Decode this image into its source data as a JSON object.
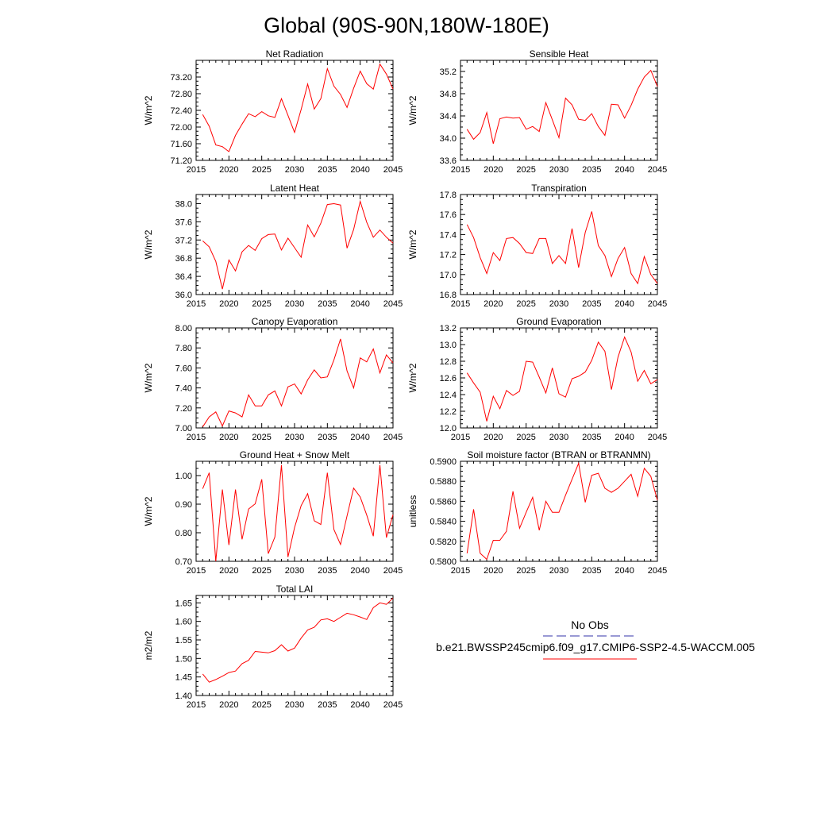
{
  "page_title": "Global (90S-90N,180W-180E)",
  "legend": {
    "obs_label": "No Obs",
    "obs_color": "#3333aa",
    "model_label": "b.e21.BWSSP245cmip6.f09_g17.CMIP6-SSP2-4.5-WACCM.005",
    "model_color": "#ff0000"
  },
  "chart_data": [
    {
      "type": "line",
      "title": "Net Radiation",
      "xlabel": "",
      "ylabel": "W/m^2",
      "xlim": [
        2015,
        2045
      ],
      "ylim": [
        71.2,
        73.6
      ],
      "yticks": [
        "71.20",
        "71.60",
        "72.00",
        "72.40",
        "72.80",
        "73.20"
      ],
      "xticks": [
        "2015",
        "2020",
        "2025",
        "2030",
        "2035",
        "2040",
        "2045"
      ],
      "x": [
        2016,
        2017,
        2018,
        2019,
        2020,
        2021,
        2022,
        2023,
        2024,
        2025,
        2026,
        2027,
        2028,
        2029,
        2030,
        2031,
        2032,
        2033,
        2034,
        2035,
        2036,
        2037,
        2038,
        2039,
        2040,
        2041,
        2042,
        2043,
        2044,
        2045
      ],
      "values": [
        72.3,
        72.02,
        71.57,
        71.53,
        71.41,
        71.8,
        72.07,
        72.32,
        72.25,
        72.37,
        72.27,
        72.23,
        72.68,
        72.28,
        71.87,
        72.42,
        73.03,
        72.43,
        72.68,
        73.4,
        72.98,
        72.78,
        72.47,
        72.93,
        73.34,
        73.04,
        72.91,
        73.51,
        73.27,
        72.91
      ],
      "series_color": "#ff0000"
    },
    {
      "type": "line",
      "title": "Sensible Heat",
      "xlabel": "",
      "ylabel": "W/m^2",
      "xlim": [
        2015,
        2045
      ],
      "ylim": [
        33.6,
        35.4
      ],
      "yticks": [
        "33.6",
        "34.0",
        "34.4",
        "34.8",
        "35.2"
      ],
      "xticks": [
        "2015",
        "2020",
        "2025",
        "2030",
        "2035",
        "2040",
        "2045"
      ],
      "x": [
        2016,
        2017,
        2018,
        2019,
        2020,
        2021,
        2022,
        2023,
        2024,
        2025,
        2026,
        2027,
        2028,
        2029,
        2030,
        2031,
        2032,
        2033,
        2034,
        2035,
        2036,
        2037,
        2038,
        2039,
        2040,
        2041,
        2042,
        2043,
        2044,
        2045
      ],
      "values": [
        34.16,
        33.98,
        34.1,
        34.46,
        33.9,
        34.35,
        34.38,
        34.36,
        34.37,
        34.16,
        34.21,
        34.12,
        34.64,
        34.33,
        34.01,
        34.72,
        34.6,
        34.34,
        34.32,
        34.44,
        34.21,
        34.05,
        34.61,
        34.6,
        34.36,
        34.59,
        34.88,
        35.1,
        35.22,
        34.93
      ],
      "series_color": "#ff0000"
    },
    {
      "type": "line",
      "title": "Latent Heat",
      "xlabel": "",
      "ylabel": "W/m^2",
      "xlim": [
        2015,
        2045
      ],
      "ylim": [
        36.0,
        38.2
      ],
      "yticks": [
        "36.0",
        "36.4",
        "36.8",
        "37.2",
        "37.6",
        "38.0"
      ],
      "xticks": [
        "2015",
        "2020",
        "2025",
        "2030",
        "2035",
        "2040",
        "2045"
      ],
      "x": [
        2016,
        2017,
        2018,
        2019,
        2020,
        2021,
        2022,
        2023,
        2024,
        2025,
        2026,
        2027,
        2028,
        2029,
        2030,
        2031,
        2032,
        2033,
        2034,
        2035,
        2036,
        2037,
        2038,
        2039,
        2040,
        2041,
        2042,
        2043,
        2044,
        2045
      ],
      "values": [
        37.18,
        37.05,
        36.73,
        36.12,
        36.76,
        36.52,
        36.94,
        37.08,
        36.97,
        37.23,
        37.32,
        37.33,
        36.98,
        37.24,
        37.03,
        36.82,
        37.53,
        37.27,
        37.57,
        37.98,
        38.0,
        37.97,
        37.02,
        37.43,
        38.05,
        37.59,
        37.26,
        37.42,
        37.26,
        37.13
      ],
      "series_color": "#ff0000"
    },
    {
      "type": "line",
      "title": "Transpiration",
      "xlabel": "",
      "ylabel": "W/m^2",
      "xlim": [
        2015,
        2045
      ],
      "ylim": [
        16.8,
        17.8
      ],
      "yticks": [
        "16.8",
        "17.0",
        "17.2",
        "17.4",
        "17.6",
        "17.8"
      ],
      "xticks": [
        "2015",
        "2020",
        "2025",
        "2030",
        "2035",
        "2040",
        "2045"
      ],
      "x": [
        2016,
        2017,
        2018,
        2019,
        2020,
        2021,
        2022,
        2023,
        2024,
        2025,
        2026,
        2027,
        2028,
        2029,
        2030,
        2031,
        2032,
        2033,
        2034,
        2035,
        2036,
        2037,
        2038,
        2039,
        2040,
        2041,
        2042,
        2043,
        2044,
        2045
      ],
      "values": [
        17.5,
        17.37,
        17.17,
        17.01,
        17.22,
        17.14,
        17.36,
        17.37,
        17.31,
        17.22,
        17.21,
        17.36,
        17.36,
        17.11,
        17.19,
        17.11,
        17.46,
        17.07,
        17.42,
        17.63,
        17.29,
        17.19,
        16.98,
        17.16,
        17.27,
        17.01,
        16.91,
        17.18,
        17.0,
        16.91
      ],
      "series_color": "#ff0000"
    },
    {
      "type": "line",
      "title": "Canopy Evaporation",
      "xlabel": "",
      "ylabel": "W/m^2",
      "xlim": [
        2015,
        2045
      ],
      "ylim": [
        7.0,
        8.0
      ],
      "yticks": [
        "7.00",
        "7.20",
        "7.40",
        "7.60",
        "7.80",
        "8.00"
      ],
      "xticks": [
        "2015",
        "2020",
        "2025",
        "2030",
        "2035",
        "2040",
        "2045"
      ],
      "x": [
        2016,
        2017,
        2018,
        2019,
        2020,
        2021,
        2022,
        2023,
        2024,
        2025,
        2026,
        2027,
        2028,
        2029,
        2030,
        2031,
        2032,
        2033,
        2034,
        2035,
        2036,
        2037,
        2038,
        2039,
        2040,
        2041,
        2042,
        2043,
        2044,
        2045
      ],
      "values": [
        7.01,
        7.11,
        7.16,
        7.02,
        7.17,
        7.15,
        7.11,
        7.33,
        7.22,
        7.22,
        7.33,
        7.37,
        7.22,
        7.41,
        7.44,
        7.34,
        7.48,
        7.58,
        7.5,
        7.51,
        7.68,
        7.89,
        7.57,
        7.4,
        7.7,
        7.66,
        7.79,
        7.55,
        7.73,
        7.65
      ],
      "series_color": "#ff0000"
    },
    {
      "type": "line",
      "title": "Ground Evaporation",
      "xlabel": "",
      "ylabel": "W/m^2",
      "xlim": [
        2015,
        2045
      ],
      "ylim": [
        12.0,
        13.2
      ],
      "yticks": [
        "12.0",
        "12.2",
        "12.4",
        "12.6",
        "12.8",
        "13.0",
        "13.2"
      ],
      "xticks": [
        "2015",
        "2020",
        "2025",
        "2030",
        "2035",
        "2040",
        "2045"
      ],
      "x": [
        2016,
        2017,
        2018,
        2019,
        2020,
        2021,
        2022,
        2023,
        2024,
        2025,
        2026,
        2027,
        2028,
        2029,
        2030,
        2031,
        2032,
        2033,
        2034,
        2035,
        2036,
        2037,
        2038,
        2039,
        2040,
        2041,
        2042,
        2043,
        2044,
        2045
      ],
      "values": [
        12.66,
        12.54,
        12.43,
        12.08,
        12.38,
        12.23,
        12.45,
        12.39,
        12.44,
        12.8,
        12.79,
        12.61,
        12.42,
        12.72,
        12.41,
        12.37,
        12.59,
        12.62,
        12.67,
        12.81,
        13.03,
        12.92,
        12.46,
        12.85,
        13.09,
        12.91,
        12.56,
        12.69,
        12.53,
        12.58
      ],
      "series_color": "#ff0000"
    },
    {
      "type": "line",
      "title": "Ground Heat + Snow Melt",
      "xlabel": "",
      "ylabel": "W/m^2",
      "xlim": [
        2015,
        2045
      ],
      "ylim": [
        0.7,
        1.05
      ],
      "yticks": [
        "0.70",
        "0.80",
        "0.90",
        "1.00"
      ],
      "xticks": [
        "2015",
        "2020",
        "2025",
        "2030",
        "2035",
        "2040",
        "2045"
      ],
      "x": [
        2016,
        2017,
        2018,
        2019,
        2020,
        2021,
        2022,
        2023,
        2024,
        2025,
        2026,
        2027,
        2028,
        2029,
        2030,
        2031,
        2032,
        2033,
        2034,
        2035,
        2036,
        2037,
        2038,
        2039,
        2040,
        2041,
        2042,
        2043,
        2044,
        2045
      ],
      "values": [
        0.954,
        1.01,
        0.7,
        0.951,
        0.757,
        0.951,
        0.777,
        0.883,
        0.901,
        0.987,
        0.727,
        0.785,
        1.037,
        0.715,
        0.818,
        0.895,
        0.937,
        0.842,
        0.829,
        1.01,
        0.811,
        0.759,
        0.859,
        0.956,
        0.925,
        0.862,
        0.788,
        1.037,
        0.783,
        0.863
      ],
      "series_color": "#ff0000"
    },
    {
      "type": "line",
      "title": "Soil moisture factor (BTRAN or BTRANMN)",
      "xlabel": "",
      "ylabel": "unitless",
      "xlim": [
        2015,
        2045
      ],
      "ylim": [
        0.58,
        0.59
      ],
      "yticks": [
        "0.5800",
        "0.5820",
        "0.5840",
        "0.5860",
        "0.5880",
        "0.5900"
      ],
      "xticks": [
        "2015",
        "2020",
        "2025",
        "2030",
        "2035",
        "2040",
        "2045"
      ],
      "x": [
        2016,
        2017,
        2018,
        2019,
        2020,
        2021,
        2022,
        2023,
        2024,
        2025,
        2026,
        2027,
        2028,
        2029,
        2030,
        2031,
        2032,
        2033,
        2034,
        2035,
        2036,
        2037,
        2038,
        2039,
        2040,
        2041,
        2042,
        2043,
        2044,
        2045
      ],
      "values": [
        0.5808,
        0.5852,
        0.5808,
        0.5802,
        0.5821,
        0.5821,
        0.583,
        0.587,
        0.5833,
        0.5849,
        0.5864,
        0.5831,
        0.586,
        0.5849,
        0.5849,
        0.5866,
        0.5882,
        0.5898,
        0.5859,
        0.5886,
        0.5888,
        0.5873,
        0.5869,
        0.5873,
        0.588,
        0.5887,
        0.5865,
        0.5893,
        0.5885,
        0.5861
      ],
      "series_color": "#ff0000"
    },
    {
      "type": "line",
      "title": "Total LAI",
      "xlabel": "",
      "ylabel": "m2/m2",
      "xlim": [
        2015,
        2045
      ],
      "ylim": [
        1.4,
        1.67
      ],
      "yticks": [
        "1.40",
        "1.45",
        "1.50",
        "1.55",
        "1.60",
        "1.65"
      ],
      "xticks": [
        "2015",
        "2020",
        "2025",
        "2030",
        "2035",
        "2040",
        "2045"
      ],
      "x": [
        2016,
        2017,
        2018,
        2019,
        2020,
        2021,
        2022,
        2023,
        2024,
        2025,
        2026,
        2027,
        2028,
        2029,
        2030,
        2031,
        2032,
        2033,
        2034,
        2035,
        2036,
        2037,
        2038,
        2039,
        2040,
        2041,
        2042,
        2043,
        2044,
        2045
      ],
      "values": [
        1.458,
        1.436,
        1.443,
        1.452,
        1.462,
        1.466,
        1.486,
        1.495,
        1.519,
        1.517,
        1.515,
        1.521,
        1.537,
        1.52,
        1.528,
        1.555,
        1.577,
        1.584,
        1.604,
        1.607,
        1.6,
        1.611,
        1.622,
        1.618,
        1.612,
        1.605,
        1.637,
        1.65,
        1.646,
        1.663
      ],
      "series_color": "#ff0000"
    }
  ]
}
